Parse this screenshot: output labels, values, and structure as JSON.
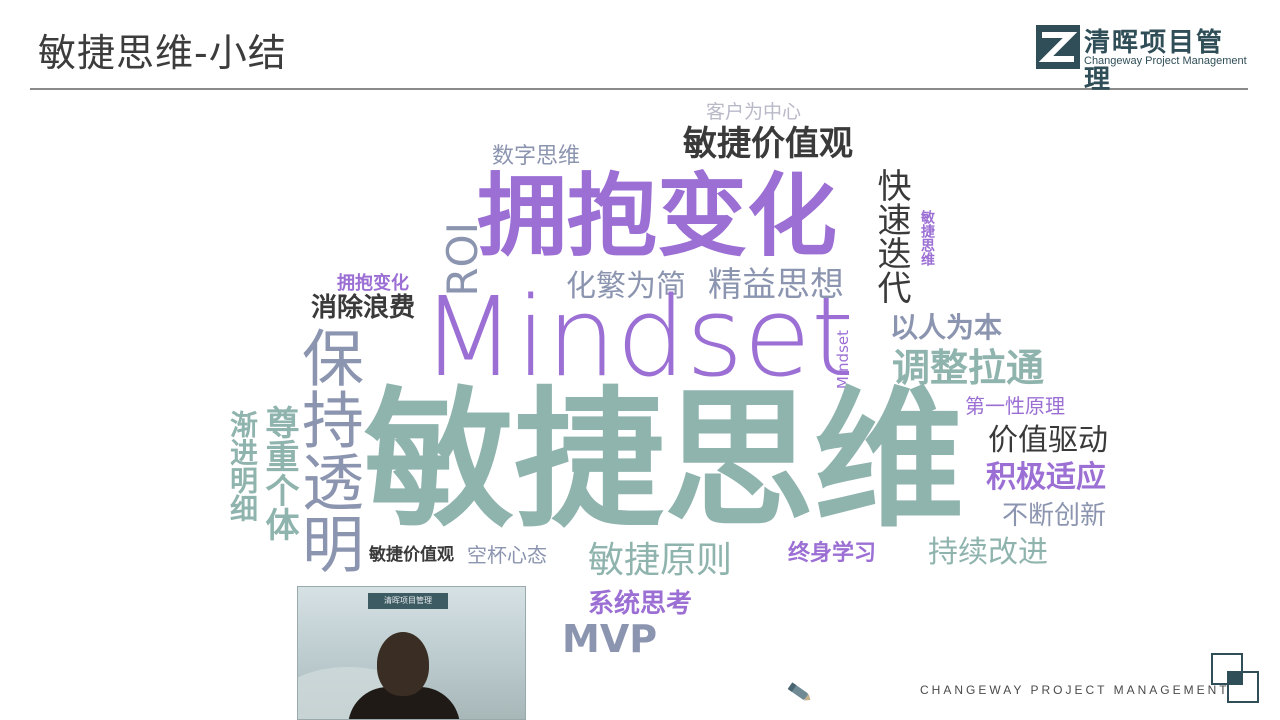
{
  "header": {
    "title": "敏捷思维-小结",
    "logo_cn": "清晖项目管理",
    "logo_en": "Changeway Project Management"
  },
  "cloud": {
    "w01": "客户为中心",
    "w02": "敏捷价值观",
    "w03": "数字思维",
    "w04": "拥抱变化",
    "w05": "快速迭代",
    "w06": "敏捷思维",
    "w07": "ROI",
    "w08": "化繁为简",
    "w09": "精益思想",
    "w10": "拥抱变化",
    "w11": "消除浪费",
    "w12": "Mindset",
    "w13": "以人为本",
    "w14": "调整拉通",
    "w15": "保持透明",
    "w16": "Mindset",
    "w17": "第一性原理",
    "w18": "渐进明细",
    "w19": "尊重个体",
    "w20": "敏捷思维",
    "w21": "价值驱动",
    "w22": "积极适应",
    "w23": "不断创新",
    "w24": "敏捷价值观",
    "w25": "空杯心态",
    "w26": "敏捷原则",
    "w27": "终身学习",
    "w28": "持续改进",
    "w29": "系统思考",
    "w30": "MVP"
  },
  "webcam": {
    "logo_text": "清晖项目管理"
  },
  "footer": {
    "text": "CHANGEWAY PROJECT MANAGEMENT"
  },
  "icons": {
    "logo": "changeway-logo-icon",
    "pen": "pen-icon",
    "corner": "corner-squares-icon"
  },
  "colors": {
    "purple": "#9b6fd4",
    "teal": "#8fb3ad",
    "dark": "#3a3a3a",
    "blue_gray": "#8c95b0"
  }
}
